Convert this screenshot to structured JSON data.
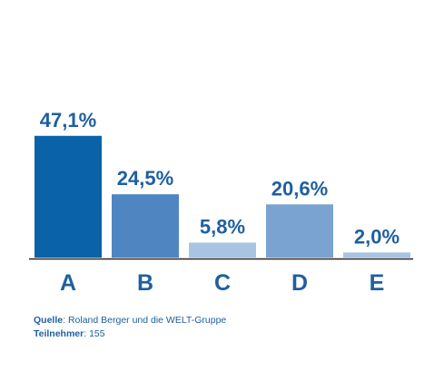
{
  "chart_data": {
    "type": "bar",
    "categories": [
      "A",
      "B",
      "C",
      "D",
      "E"
    ],
    "values": [
      47.1,
      24.5,
      5.8,
      20.6,
      2.0
    ],
    "value_labels": [
      "47,1%",
      "24,5%",
      "5,8%",
      "20,6%",
      "2,0%"
    ],
    "colors": [
      "#0a62a9",
      "#4f86c2",
      "#a9c4e2",
      "#7aa3d1",
      "#a9c4e2"
    ],
    "ylim": [
      0,
      50
    ],
    "grid": false,
    "title": "",
    "xlabel": "",
    "ylabel": ""
  },
  "footer": {
    "source_key": "Quelle",
    "source_value": ": Roland Berger und die WELT-Gruppe",
    "participants_key": "Teilnehmer",
    "participants_value": ": 155"
  },
  "colors": {
    "text": "#1f5fa0",
    "axis": "#222222"
  }
}
